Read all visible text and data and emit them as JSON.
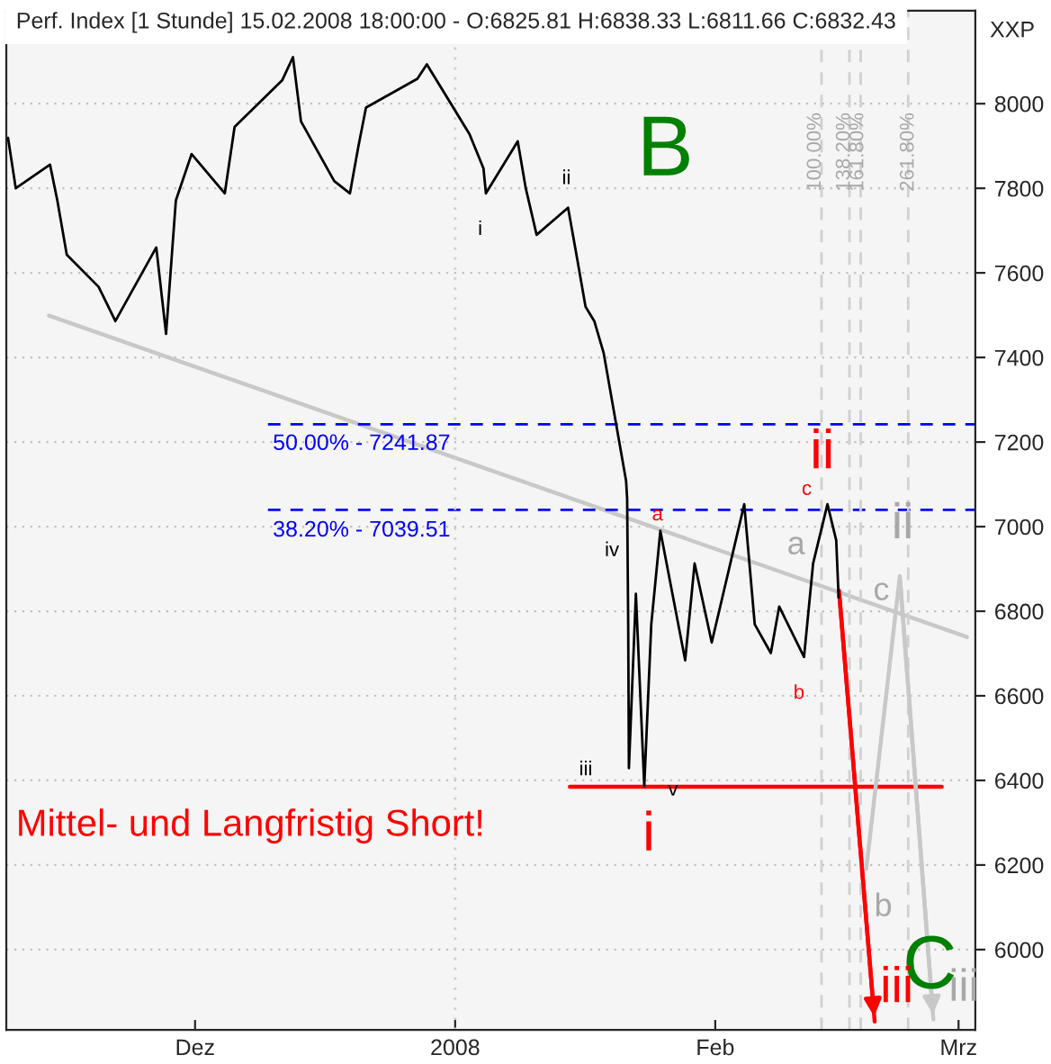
{
  "chart_data": {
    "type": "line",
    "title": "Perf. Index [1 Stunde] 15.02.2008 18:00:00 - O:6825.81 H:6838.33 L:6811.66 C:6832.43",
    "ylabel": "XXP",
    "xlim": [
      "2007-11-08T12:00",
      "2008-03-03"
    ],
    "ylim": [
      5810,
      8220
    ],
    "xticks": [
      {
        "value": "2007-12-01",
        "label": "Dez"
      },
      {
        "value": "2008-01-01",
        "label": "2008"
      },
      {
        "value": "2008-02-01",
        "label": "Feb"
      },
      {
        "value": "2008-03-01",
        "label": "Mrz"
      }
    ],
    "yticks": [
      6000,
      6200,
      6400,
      6600,
      6800,
      7000,
      7200,
      7400,
      7600,
      7800,
      8000
    ],
    "grid": "y",
    "series": [
      {
        "color": "#000000",
        "x": [
          "2007-11-08T17:00",
          "2007-11-09T15:00",
          "2007-11-13T17:00",
          "2007-11-14T14:00",
          "2007-11-15T17:00",
          "2007-11-19T12:00",
          "2007-11-21T12:00",
          "2007-11-26T09:00",
          "2007-11-27T13:00",
          "2007-11-28T17:00",
          "2007-11-30T14:00",
          "2007-12-04T13:00",
          "2007-12-05T17:00",
          "2007-12-11T09:00",
          "2007-12-12T16:00",
          "2007-12-13T15:00",
          "2007-12-17T14:00",
          "2007-12-19T11:00",
          "2007-12-20T11:00",
          "2007-12-21T09:00",
          "2007-12-27T12:00",
          "2007-12-28T15:00",
          "2008-01-02T17:00",
          "2008-01-04T09:00",
          "2008-01-04T16:00",
          "2008-01-08T11:00",
          "2008-01-09T10:00",
          "2008-01-10T17:00",
          "2008-01-14T11:00",
          "2008-01-15T11:00",
          "2008-01-16T13:00",
          "2008-01-17T14:00",
          "2008-01-18T17:00",
          "2008-01-21T09:00",
          "2008-01-21T12:00",
          "2008-01-21T15:00",
          "2008-01-21T17:00",
          "2008-01-22T13:00",
          "2008-01-23T13:00",
          "2008-01-24T09:00",
          "2008-01-25T11:00",
          "2008-01-28T10:00",
          "2008-01-29T13:00",
          "2008-01-31T14:00",
          "2008-02-04T11:00",
          "2008-02-05T17:00",
          "2008-02-07T15:00",
          "2008-02-08T15:00",
          "2008-02-11T14:00",
          "2008-02-12T16:00",
          "2008-02-14T09:00",
          "2008-02-15T10:00",
          "2008-02-15T17:00"
        ],
        "values": [
          7919,
          7800,
          7856,
          7771,
          7643,
          7567,
          7486,
          7660,
          7456,
          7771,
          7881,
          7788,
          7945,
          8055,
          8110,
          7958,
          7817,
          7788,
          7898,
          7991,
          8059,
          8093,
          7928,
          7847,
          7788,
          7911,
          7800,
          7690,
          7754,
          7643,
          7520,
          7486,
          7410,
          7108,
          7066,
          6769,
          6429,
          6841,
          6387,
          6769,
          6990,
          6684,
          6913,
          6726,
          7053,
          6769,
          6701,
          6811,
          6692,
          6913,
          7053,
          6968,
          6832
        ]
      },
      {
        "color": "#c8c8c8",
        "x": [
          "2007-11-13T14:00",
          "2008-03-02"
        ],
        "values": [
          7499,
          6739
        ]
      },
      {
        "color": "#ff0000",
        "x": [
          "2008-01-14T16:00",
          "2008-02-28"
        ],
        "values": [
          6385,
          6385
        ]
      },
      {
        "color": "#ff0000",
        "x": [
          "2008-02-15T18:00",
          "2008-02-20"
        ],
        "values": [
          6849,
          5830
        ]
      },
      {
        "color": "#c8c8c8",
        "x": [
          "2008-02-19",
          "2008-02-23",
          "2008-02-27"
        ],
        "values": [
          6191,
          6883,
          5835
        ]
      }
    ],
    "ref_lines": [
      {
        "axis": "y",
        "value": 7241.87,
        "color": "#0000ff",
        "line_style": "dashed"
      },
      {
        "axis": "y",
        "value": 7039.51,
        "color": "#0000ff",
        "line_style": "dashed"
      },
      {
        "axis": "x",
        "value": "2008-02-13T16:00",
        "color": "#d0d0d0",
        "line_style": "dashed"
      },
      {
        "axis": "x",
        "value": "2008-02-17",
        "color": "#d0d0d0",
        "line_style": "dashed"
      },
      {
        "axis": "x",
        "value": "2008-02-18T08:00",
        "color": "#d0d0d0",
        "line_style": "dashed"
      },
      {
        "axis": "x",
        "value": "2008-02-24",
        "color": "#d0d0d0",
        "line_style": "dashed"
      },
      {
        "axis": "x",
        "value": "2008-01-01",
        "color": "#d0d0d0",
        "line_style": "dotted"
      }
    ],
    "annotations": [
      "B",
      "C",
      "i",
      "ii",
      "iii",
      "ii",
      "iii",
      "a",
      "b",
      "c",
      "a",
      "b",
      "c",
      "i",
      "ii",
      "iii",
      "iv",
      "v",
      "Mittel- und Langfristig Short!",
      "50.00% - 7241.87",
      "38.20% - 7039.51",
      "100.00%",
      "138.20%",
      "161.80%",
      "261.80%"
    ]
  }
}
